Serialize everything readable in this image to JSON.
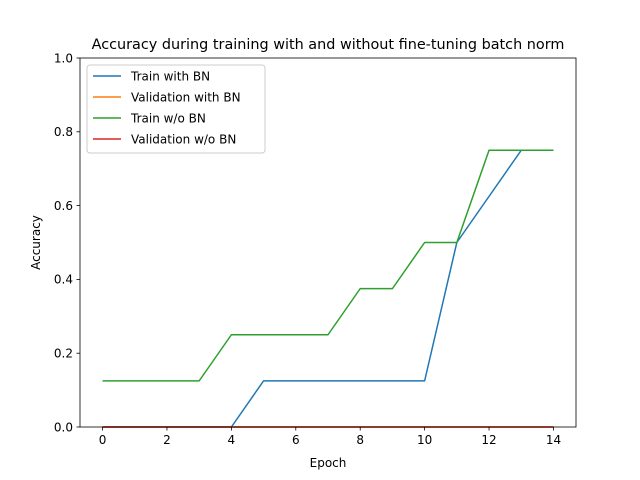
{
  "chart_data": {
    "type": "line",
    "title": "Accuracy during training with and without fine-tuning batch norm",
    "xlabel": "Epoch",
    "ylabel": "Accuracy",
    "xlim": [
      -0.7,
      14.7
    ],
    "ylim": [
      0.0,
      1.0
    ],
    "xticks": [
      0,
      2,
      4,
      6,
      8,
      10,
      12,
      14
    ],
    "xtick_labels": [
      "0",
      "2",
      "4",
      "6",
      "8",
      "10",
      "12",
      "14"
    ],
    "yticks": [
      0.0,
      0.2,
      0.4,
      0.6,
      0.8,
      1.0
    ],
    "ytick_labels": [
      "0.0",
      "0.2",
      "0.4",
      "0.6",
      "0.8",
      "1.0"
    ],
    "grid": false,
    "legend_position": "upper-left",
    "x": [
      0,
      1,
      2,
      3,
      4,
      5,
      6,
      7,
      8,
      9,
      10,
      11,
      12,
      13,
      14
    ],
    "series": [
      {
        "name": "Train with BN",
        "color": "#1f77b4",
        "values": [
          0,
          0,
          0,
          0,
          0,
          0.125,
          0.125,
          0.125,
          0.125,
          0.125,
          0.125,
          0.5,
          0.625,
          0.75,
          0.75
        ]
      },
      {
        "name": "Validation with BN",
        "color": "#ff7f0e",
        "values": [
          0,
          0,
          0,
          0,
          0,
          0,
          0,
          0,
          0,
          0,
          0,
          0,
          0,
          0,
          0
        ]
      },
      {
        "name": "Train w/o BN",
        "color": "#2ca02c",
        "values": [
          0.125,
          0.125,
          0.125,
          0.125,
          0.25,
          0.25,
          0.25,
          0.25,
          0.375,
          0.375,
          0.5,
          0.5,
          0.75,
          0.75,
          0.75
        ]
      },
      {
        "name": "Validation w/o BN",
        "color": "#d62728",
        "values": [
          0,
          0,
          0,
          0,
          0,
          0,
          0,
          0,
          0,
          0,
          0,
          0,
          0,
          0,
          0
        ]
      }
    ]
  }
}
